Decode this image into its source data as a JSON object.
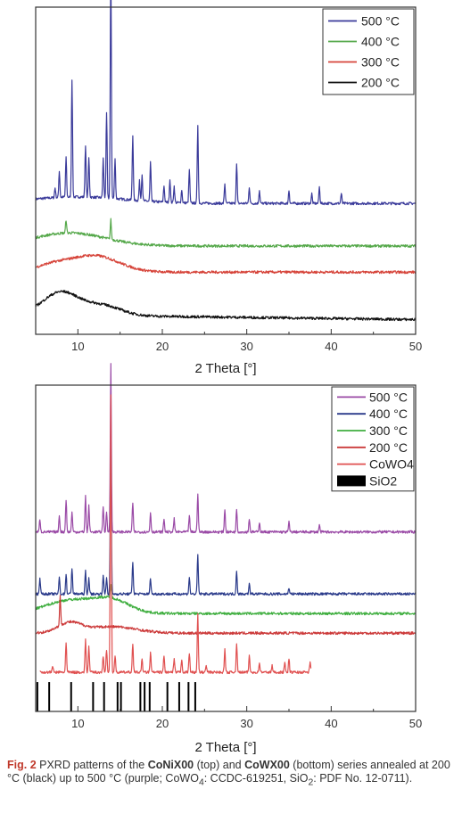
{
  "chart_data": [
    {
      "type": "line",
      "title": "",
      "xlabel": "2 Theta [°]",
      "ylabel": "",
      "xlim": [
        5,
        50
      ],
      "x_ticks": [
        10,
        20,
        30,
        40,
        50
      ],
      "grid": false,
      "legend_position": "top-right",
      "series": [
        {
          "name": "500 °C",
          "color": "#3a3a9a",
          "offset": 0.4,
          "peaks": [
            [
              7.3,
              0.03
            ],
            [
              7.8,
              0.08
            ],
            [
              8.6,
              0.12
            ],
            [
              9.3,
              0.36
            ],
            [
              10.9,
              0.16
            ],
            [
              11.3,
              0.12
            ],
            [
              13.0,
              0.12
            ],
            [
              13.4,
              0.26
            ],
            [
              13.9,
              0.73
            ],
            [
              14.4,
              0.12
            ],
            [
              16.5,
              0.2
            ],
            [
              17.3,
              0.06
            ],
            [
              17.6,
              0.08
            ],
            [
              18.6,
              0.12
            ],
            [
              20.2,
              0.05
            ],
            [
              20.9,
              0.07
            ],
            [
              21.4,
              0.05
            ],
            [
              22.3,
              0.04
            ],
            [
              23.2,
              0.1
            ],
            [
              24.2,
              0.24
            ],
            [
              27.4,
              0.06
            ],
            [
              28.8,
              0.12
            ],
            [
              30.3,
              0.05
            ],
            [
              31.5,
              0.04
            ],
            [
              35.0,
              0.04
            ],
            [
              37.7,
              0.03
            ],
            [
              38.6,
              0.05
            ],
            [
              41.2,
              0.03
            ]
          ]
        },
        {
          "name": "400 °C",
          "color": "#55a84a",
          "offset": 0.27,
          "peaks": [
            [
              8.6,
              0.04
            ],
            [
              13.9,
              0.06
            ]
          ]
        },
        {
          "name": "300 °C",
          "color": "#d6443a",
          "offset": 0.19,
          "peaks": []
        },
        {
          "name": "200 °C",
          "color": "#111111",
          "offset": 0.06,
          "peaks": []
        }
      ]
    },
    {
      "type": "line",
      "title": "",
      "xlabel": "2 Theta [°]",
      "ylabel": "",
      "xlim": [
        5,
        50
      ],
      "x_ticks": [
        10,
        20,
        30,
        40,
        50
      ],
      "grid": false,
      "legend_position": "top-right",
      "series": [
        {
          "name": "500 °C",
          "color": "#9a4aa6",
          "offset": 0.55,
          "peaks": [
            [
              5.5,
              0.04
            ],
            [
              7.8,
              0.05
            ],
            [
              8.6,
              0.1
            ],
            [
              9.3,
              0.06
            ],
            [
              10.9,
              0.11
            ],
            [
              11.3,
              0.08
            ],
            [
              13.0,
              0.08
            ],
            [
              13.4,
              0.06
            ],
            [
              13.9,
              0.52
            ],
            [
              16.5,
              0.09
            ],
            [
              18.6,
              0.06
            ],
            [
              20.2,
              0.04
            ],
            [
              21.4,
              0.04
            ],
            [
              23.2,
              0.05
            ],
            [
              24.2,
              0.12
            ],
            [
              27.4,
              0.07
            ],
            [
              28.8,
              0.07
            ],
            [
              30.3,
              0.04
            ],
            [
              31.5,
              0.03
            ],
            [
              35.0,
              0.03
            ],
            [
              38.6,
              0.02
            ]
          ]
        },
        {
          "name": "400 °C",
          "color": "#2a3a8a",
          "offset": 0.36,
          "peaks": [
            [
              5.5,
              0.05
            ],
            [
              7.8,
              0.05
            ],
            [
              8.6,
              0.06
            ],
            [
              9.3,
              0.08
            ],
            [
              10.9,
              0.07
            ],
            [
              11.3,
              0.05
            ],
            [
              13.0,
              0.06
            ],
            [
              13.4,
              0.05
            ],
            [
              13.9,
              0.5
            ],
            [
              16.5,
              0.1
            ],
            [
              18.6,
              0.05
            ],
            [
              23.2,
              0.05
            ],
            [
              24.2,
              0.12
            ],
            [
              28.8,
              0.07
            ],
            [
              30.3,
              0.03
            ],
            [
              35.0,
              0.02
            ]
          ]
        },
        {
          "name": "300 °C",
          "color": "#3fae3f",
          "offset": 0.3,
          "peaks": [
            [
              13.9,
              0.04
            ]
          ]
        },
        {
          "name": "200 °C",
          "color": "#cc3a3a",
          "offset": 0.24,
          "peaks": [
            [
              7.9,
              0.09
            ]
          ]
        },
        {
          "name": "CoWO4",
          "color": "#e05050",
          "offset": 0.12,
          "xrange": [
            5.5,
            37.6
          ],
          "peaks": [
            [
              7.0,
              0.02
            ],
            [
              8.6,
              0.09
            ],
            [
              10.9,
              0.1
            ],
            [
              11.3,
              0.08
            ],
            [
              13.0,
              0.05
            ],
            [
              13.4,
              0.07
            ],
            [
              13.9,
              0.85
            ],
            [
              14.4,
              0.05
            ],
            [
              16.5,
              0.09
            ],
            [
              17.6,
              0.04
            ],
            [
              18.6,
              0.06
            ],
            [
              20.2,
              0.05
            ],
            [
              21.4,
              0.04
            ],
            [
              22.3,
              0.04
            ],
            [
              23.2,
              0.06
            ],
            [
              24.2,
              0.18
            ],
            [
              25.2,
              0.02
            ],
            [
              27.4,
              0.07
            ],
            [
              28.8,
              0.09
            ],
            [
              30.3,
              0.05
            ],
            [
              31.5,
              0.03
            ],
            [
              33.0,
              0.02
            ],
            [
              34.5,
              0.03
            ],
            [
              35.0,
              0.04
            ],
            [
              37.5,
              0.03
            ]
          ]
        },
        {
          "name": "SiO2",
          "color": "#000000",
          "type": "stick",
          "sticks": [
            5.2,
            6.6,
            9.2,
            11.8,
            13.1,
            14.7,
            15.1,
            17.4,
            17.9,
            18.5,
            20.6,
            22.0,
            23.1,
            23.9
          ]
        }
      ]
    }
  ],
  "caption": {
    "label": "Fig. 2",
    "text_1": "  PXRD patterns of the ",
    "bold_1": "CoNiX00",
    "text_2": " (top) and ",
    "bold_2": "CoWX00",
    "text_3": " (bottom) series annealed at 200 °C (black) up to 500 °C (purple; CoWO",
    "sub_1": "4",
    "text_4": ": CCDC-619251, SiO",
    "sub_2": "2",
    "text_5": ": PDF No. 12-0711)."
  }
}
